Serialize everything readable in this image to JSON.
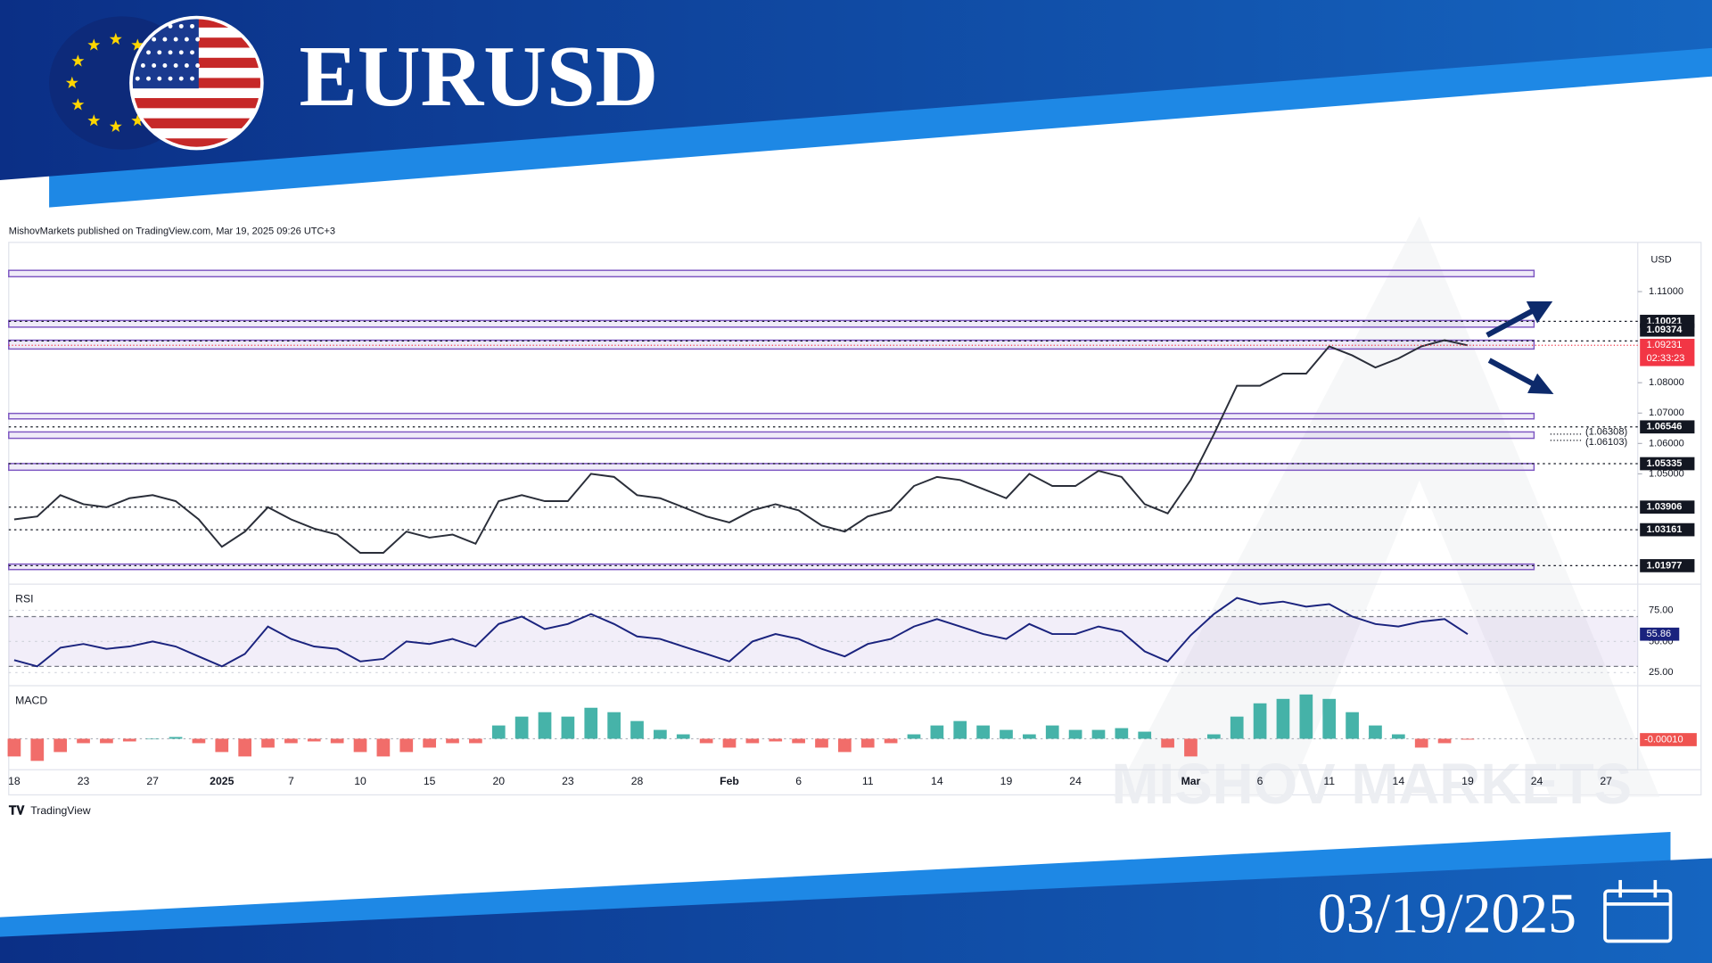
{
  "header": {
    "title": "EURUSD"
  },
  "published": "MishovMarkets published on TradingView.com, Mar 19, 2025 09:26 UTC+3",
  "brand": "TradingView",
  "watermark": "MISHOV MARKETS",
  "date": "03/19/2025",
  "chart_data": [
    {
      "type": "line",
      "currency": "USD",
      "categories": [
        "18",
        null,
        null,
        "23",
        null,
        null,
        "27",
        null,
        null,
        "2025",
        null,
        null,
        "7",
        null,
        null,
        "10",
        null,
        null,
        "15",
        null,
        null,
        "20",
        null,
        null,
        "23",
        null,
        null,
        "28",
        null,
        null,
        null,
        "Feb",
        null,
        null,
        "6",
        null,
        null,
        "11",
        null,
        null,
        "14",
        null,
        null,
        "19",
        null,
        null,
        "24",
        null,
        null,
        null,
        null,
        "Mar",
        null,
        null,
        "6",
        null,
        null,
        "11",
        null,
        null,
        "14",
        null,
        null,
        "19",
        null,
        null,
        "24",
        null,
        null,
        "27"
      ],
      "values": [
        1.035,
        1.036,
        1.043,
        1.04,
        1.039,
        1.042,
        1.043,
        1.041,
        1.035,
        1.026,
        1.031,
        1.039,
        1.035,
        1.032,
        1.03,
        1.024,
        1.024,
        1.031,
        1.029,
        1.03,
        1.027,
        1.041,
        1.043,
        1.041,
        1.041,
        1.05,
        1.049,
        1.043,
        1.042,
        1.039,
        1.036,
        1.034,
        1.038,
        1.04,
        1.038,
        1.033,
        1.031,
        1.036,
        1.038,
        1.046,
        1.049,
        1.048,
        1.045,
        1.042,
        1.05,
        1.046,
        1.046,
        1.051,
        1.049,
        1.04,
        1.037,
        1.048,
        1.063,
        1.079,
        1.079,
        1.083,
        1.083,
        1.092,
        1.089,
        1.085,
        1.088,
        1.092,
        1.094,
        1.09231,
        null,
        null,
        null,
        null,
        null,
        null
      ],
      "color": "#2a2e39",
      "ylim": [
        1.0137,
        1.1262
      ],
      "yticks": [
        {
          "value": 1.11,
          "label": "1.11000"
        },
        {
          "value": 1.08,
          "label": "1.08000"
        },
        {
          "value": 1.07,
          "label": "1.07000"
        },
        {
          "value": 1.06,
          "label": "1.06000"
        },
        {
          "value": 1.05,
          "label": "1.05000"
        }
      ],
      "zones": [
        [
          1.1149,
          1.117
        ],
        [
          1.0983,
          1.1005
        ],
        [
          1.0911,
          1.094
        ],
        [
          1.0681,
          1.0699
        ],
        [
          1.0617,
          1.0638
        ],
        [
          1.0512,
          1.0534
        ],
        [
          1.0185,
          1.0203
        ]
      ],
      "zone_color": "#7e57c2",
      "levels": [
        1.10021,
        1.09374,
        1.06546,
        1.05335,
        1.03906,
        1.03161,
        1.01977
      ],
      "bracket_levels": [
        {
          "value": 1.06308,
          "label": "(1.06308)"
        },
        {
          "value": 1.06103,
          "label": "(1.06103)"
        }
      ],
      "current_price": 1.09231,
      "countdown": "02:33:23",
      "current_color": "#f23645"
    },
    {
      "type": "line",
      "title": "RSI",
      "values": [
        35,
        30,
        45,
        48,
        44,
        46,
        50,
        46,
        38,
        30,
        40,
        62,
        52,
        46,
        44,
        34,
        36,
        50,
        48,
        52,
        46,
        64,
        70,
        60,
        64,
        72,
        64,
        54,
        52,
        46,
        40,
        34,
        50,
        56,
        52,
        44,
        38,
        48,
        52,
        62,
        68,
        62,
        56,
        52,
        64,
        56,
        56,
        62,
        58,
        42,
        34,
        55,
        72,
        85,
        80,
        82,
        78,
        80,
        70,
        64,
        62,
        66,
        68,
        55.86
      ],
      "color": "#1a237e",
      "ylim": [
        14.5,
        93.4
      ],
      "yticks": [
        {
          "value": 75,
          "label": "75.00"
        },
        {
          "value": 50,
          "label": "50.00"
        },
        {
          "value": 25,
          "label": "25.00"
        }
      ],
      "band": [
        30,
        70
      ]
    },
    {
      "type": "bar",
      "title": "MACD",
      "values": [
        -0.002,
        -0.0025,
        -0.0015,
        -0.0005,
        -0.0005,
        -0.0003,
        0,
        0.0002,
        -0.0005,
        -0.0015,
        -0.002,
        -0.001,
        -0.0005,
        -0.0003,
        -0.0005,
        -0.0015,
        -0.002,
        -0.0015,
        -0.001,
        -0.0005,
        -0.0005,
        0.0015,
        0.0025,
        0.003,
        0.0025,
        0.0035,
        0.003,
        0.002,
        0.001,
        0.0005,
        -0.0005,
        -0.001,
        -0.0005,
        -0.0003,
        -0.0005,
        -0.001,
        -0.0015,
        -0.001,
        -0.0005,
        0.0005,
        0.0015,
        0.002,
        0.0015,
        0.001,
        0.0005,
        0.0015,
        0.001,
        0.001,
        0.0012,
        0.0008,
        -0.001,
        -0.002,
        0.0005,
        0.0025,
        0.004,
        0.0045,
        0.005,
        0.0045,
        0.003,
        0.0015,
        0.0005,
        -0.001,
        -0.0005,
        -0.0001
      ],
      "up_color": "#26a69a",
      "down_color": "#ef5350",
      "ylim": [
        -0.0035,
        0.0055
      ],
      "current": {
        "value": -0.0001,
        "label": "-0.00010"
      }
    }
  ]
}
